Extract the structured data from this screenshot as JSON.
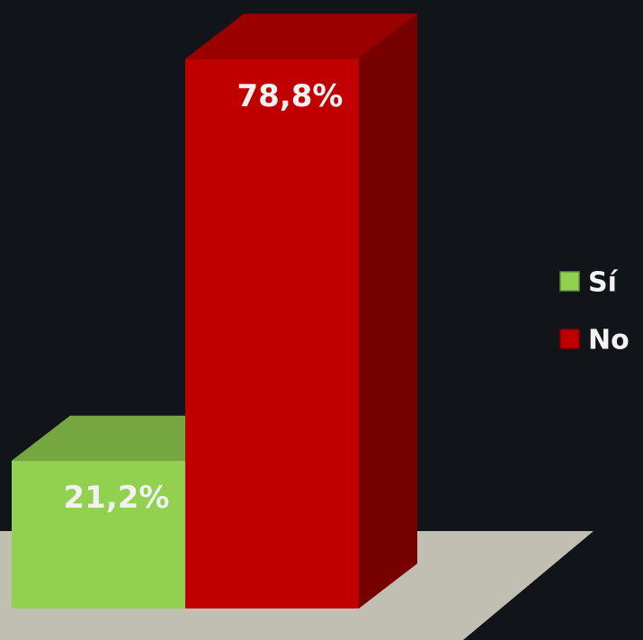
{
  "chart_data": {
    "type": "bar3d",
    "categories": [
      "Sí",
      "No"
    ],
    "values": [
      21.2,
      78.8
    ],
    "value_labels": [
      "21,2%",
      "78,8%"
    ],
    "colors": [
      "#92d050",
      "#c00000"
    ],
    "legend": "right"
  }
}
